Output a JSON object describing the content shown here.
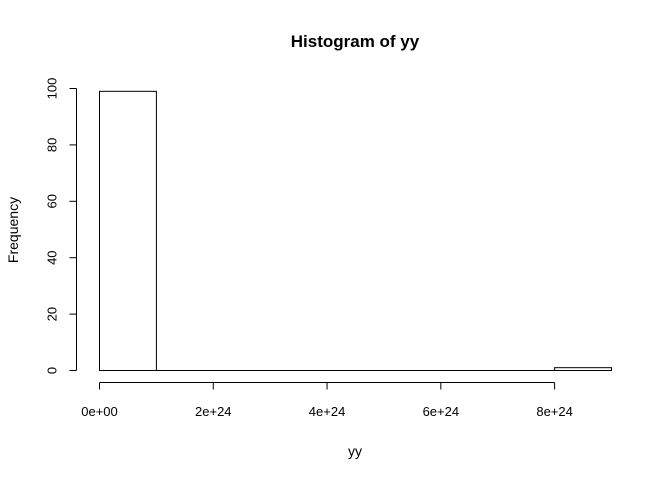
{
  "chart_data": {
    "type": "bar",
    "title": "Histogram of yy",
    "xlabel": "yy",
    "ylabel": "Frequency",
    "bins": [
      {
        "start": 0,
        "end": 1e+24,
        "count": 99
      },
      {
        "start": 1e+24,
        "end": 2e+24,
        "count": 0
      },
      {
        "start": 2e+24,
        "end": 3e+24,
        "count": 0
      },
      {
        "start": 3e+24,
        "end": 4e+24,
        "count": 0
      },
      {
        "start": 4e+24,
        "end": 5e+24,
        "count": 0
      },
      {
        "start": 5e+24,
        "end": 6e+24,
        "count": 0
      },
      {
        "start": 6e+24,
        "end": 7e+24,
        "count": 0
      },
      {
        "start": 7e+24,
        "end": 8e+24,
        "count": 0
      },
      {
        "start": 8e+24,
        "end": 9e+24,
        "count": 1
      }
    ],
    "xlim": [
      0,
      9e+24
    ],
    "ylim": [
      0,
      100
    ],
    "x_ticks": [
      {
        "value": 0,
        "label": "0e+00"
      },
      {
        "value": 2e+24,
        "label": "2e+24"
      },
      {
        "value": 4e+24,
        "label": "4e+24"
      },
      {
        "value": 6e+24,
        "label": "6e+24"
      },
      {
        "value": 8e+24,
        "label": "8e+24"
      }
    ],
    "y_ticks": [
      {
        "value": 0,
        "label": "0"
      },
      {
        "value": 20,
        "label": "20"
      },
      {
        "value": 40,
        "label": "40"
      },
      {
        "value": 60,
        "label": "60"
      },
      {
        "value": 80,
        "label": "80"
      },
      {
        "value": 100,
        "label": "100"
      }
    ],
    "grid": false,
    "legend": "none"
  }
}
